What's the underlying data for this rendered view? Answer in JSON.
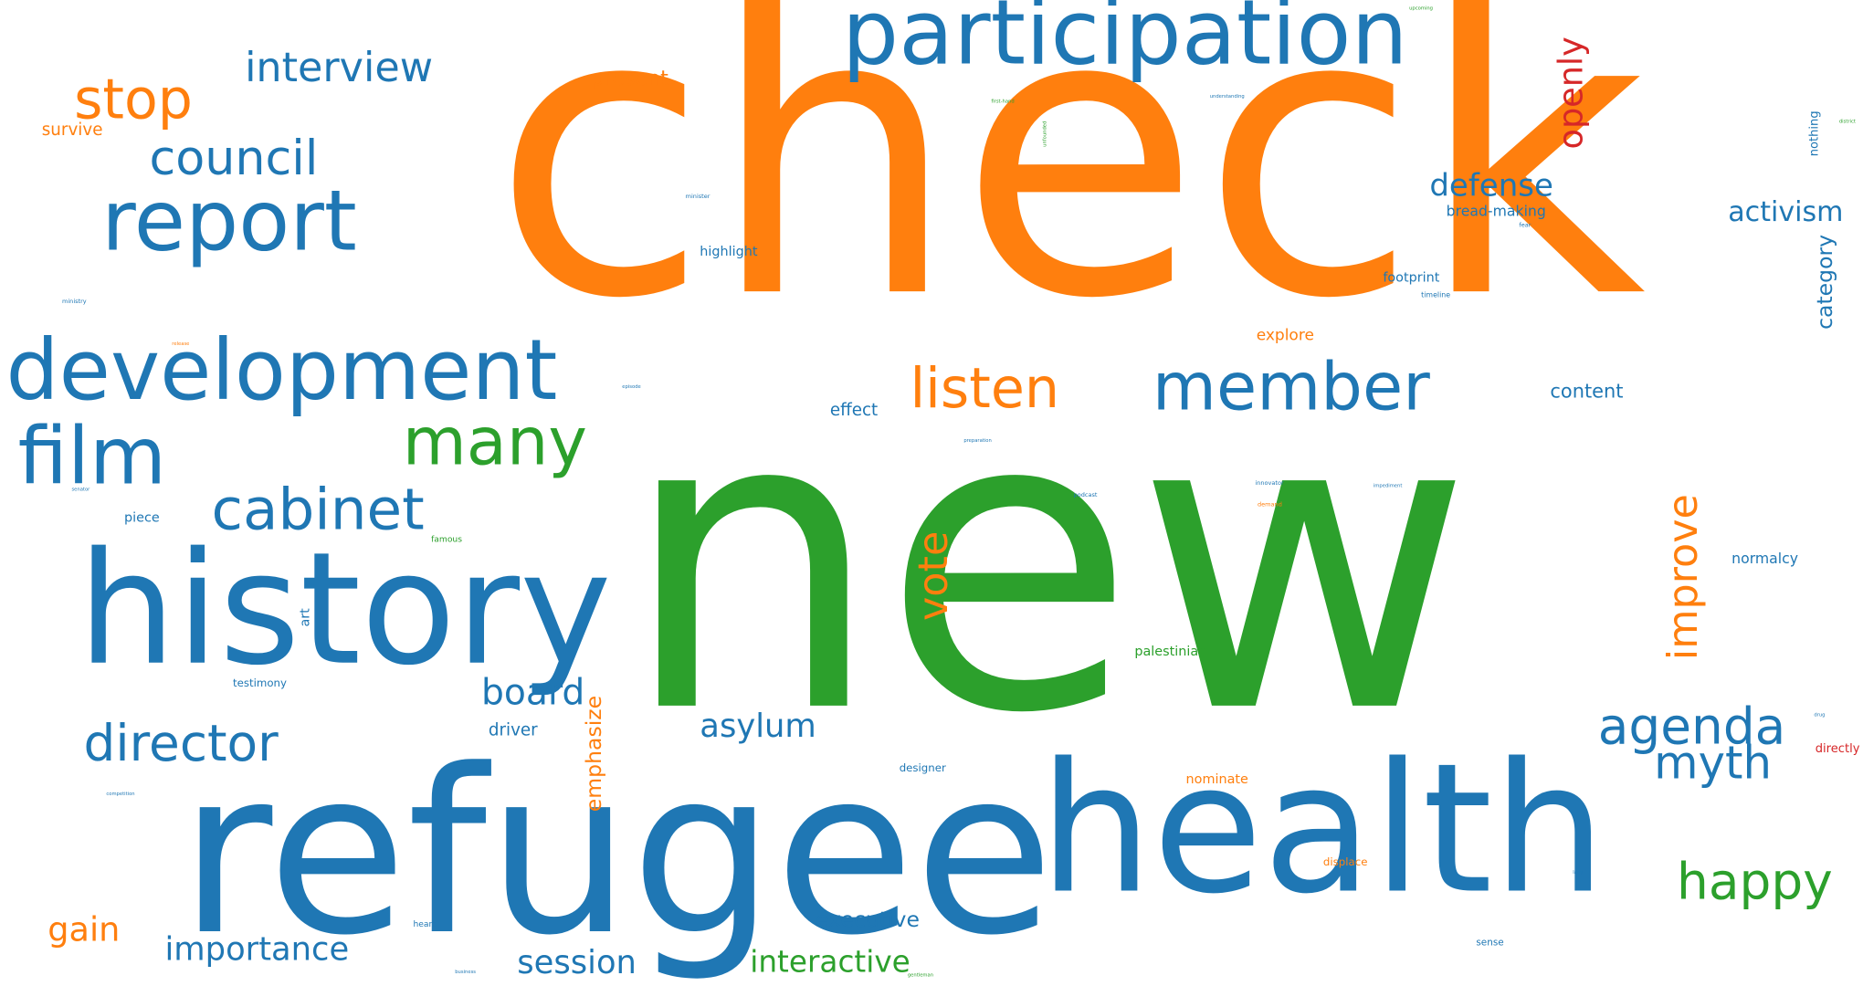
{
  "palette": {
    "blue": "#1f77b4",
    "orange": "#ff7f0e",
    "green": "#2ca02c",
    "red": "#d62728"
  },
  "words": [
    {
      "text": "check",
      "color": "orange"
    },
    {
      "text": "new",
      "color": "green"
    },
    {
      "text": "refugee",
      "color": "blue"
    },
    {
      "text": "health",
      "color": "blue"
    },
    {
      "text": "history",
      "color": "blue"
    },
    {
      "text": "participation",
      "color": "blue"
    },
    {
      "text": "development",
      "color": "blue"
    },
    {
      "text": "report",
      "color": "blue"
    },
    {
      "text": "film",
      "color": "blue"
    },
    {
      "text": "member",
      "color": "blue"
    },
    {
      "text": "many",
      "color": "green"
    },
    {
      "text": "stop",
      "color": "orange"
    },
    {
      "text": "listen",
      "color": "orange"
    },
    {
      "text": "cabinet",
      "color": "blue"
    },
    {
      "text": "council",
      "color": "blue"
    },
    {
      "text": "interview",
      "color": "blue"
    },
    {
      "text": "director",
      "color": "blue"
    },
    {
      "text": "agenda",
      "color": "blue"
    },
    {
      "text": "myth",
      "color": "blue"
    },
    {
      "text": "happy",
      "color": "green"
    },
    {
      "text": "vote",
      "color": "orange"
    },
    {
      "text": "improve",
      "color": "orange"
    },
    {
      "text": "openly",
      "color": "red"
    },
    {
      "text": "board",
      "color": "blue"
    },
    {
      "text": "asylum",
      "color": "blue"
    },
    {
      "text": "defense",
      "color": "blue"
    },
    {
      "text": "activism",
      "color": "blue"
    },
    {
      "text": "importance",
      "color": "blue"
    },
    {
      "text": "session",
      "color": "blue"
    },
    {
      "text": "interactive",
      "color": "green"
    },
    {
      "text": "gain",
      "color": "orange"
    },
    {
      "text": "executive",
      "color": "blue"
    },
    {
      "text": "emphasize",
      "color": "orange"
    },
    {
      "text": "category",
      "color": "blue"
    },
    {
      "text": "present",
      "color": "orange"
    },
    {
      "text": "survive",
      "color": "orange"
    },
    {
      "text": "content",
      "color": "blue"
    },
    {
      "text": "effect",
      "color": "blue"
    },
    {
      "text": "explore",
      "color": "orange"
    },
    {
      "text": "normalcy",
      "color": "blue"
    },
    {
      "text": "driver",
      "color": "blue"
    },
    {
      "text": "nothing",
      "color": "blue"
    },
    {
      "text": "bread-making",
      "color": "blue"
    },
    {
      "text": "footprint",
      "color": "blue"
    },
    {
      "text": "highlight",
      "color": "blue"
    },
    {
      "text": "palestinian",
      "color": "green"
    },
    {
      "text": "piece",
      "color": "blue"
    },
    {
      "text": "art",
      "color": "blue"
    },
    {
      "text": "testimony",
      "color": "blue"
    },
    {
      "text": "nominate",
      "color": "orange"
    },
    {
      "text": "directly",
      "color": "red"
    },
    {
      "text": "designer",
      "color": "blue"
    },
    {
      "text": "displace",
      "color": "orange"
    },
    {
      "text": "famous",
      "color": "green"
    },
    {
      "text": "heart",
      "color": "blue"
    },
    {
      "text": "sense",
      "color": "blue"
    },
    {
      "text": "timeline",
      "color": "blue"
    },
    {
      "text": "upcoming",
      "color": "green"
    },
    {
      "text": "understanding",
      "color": "blue"
    },
    {
      "text": "minister",
      "color": "blue"
    },
    {
      "text": "ministry",
      "color": "blue"
    },
    {
      "text": "unfounded",
      "color": "green"
    },
    {
      "text": "preparation",
      "color": "blue"
    },
    {
      "text": "podcast",
      "color": "blue"
    },
    {
      "text": "innovator",
      "color": "blue"
    },
    {
      "text": "impediment",
      "color": "blue"
    },
    {
      "text": "demand",
      "color": "orange"
    },
    {
      "text": "senator",
      "color": "blue"
    },
    {
      "text": "episode",
      "color": "blue"
    },
    {
      "text": "release",
      "color": "orange"
    },
    {
      "text": "competition",
      "color": "blue"
    },
    {
      "text": "gentleman",
      "color": "green"
    },
    {
      "text": "business",
      "color": "blue"
    },
    {
      "text": "lady",
      "color": "blue"
    },
    {
      "text": "drug",
      "color": "blue"
    },
    {
      "text": "first-hand",
      "color": "green"
    },
    {
      "text": "district",
      "color": "green"
    },
    {
      "text": "fear",
      "color": "blue"
    }
  ]
}
